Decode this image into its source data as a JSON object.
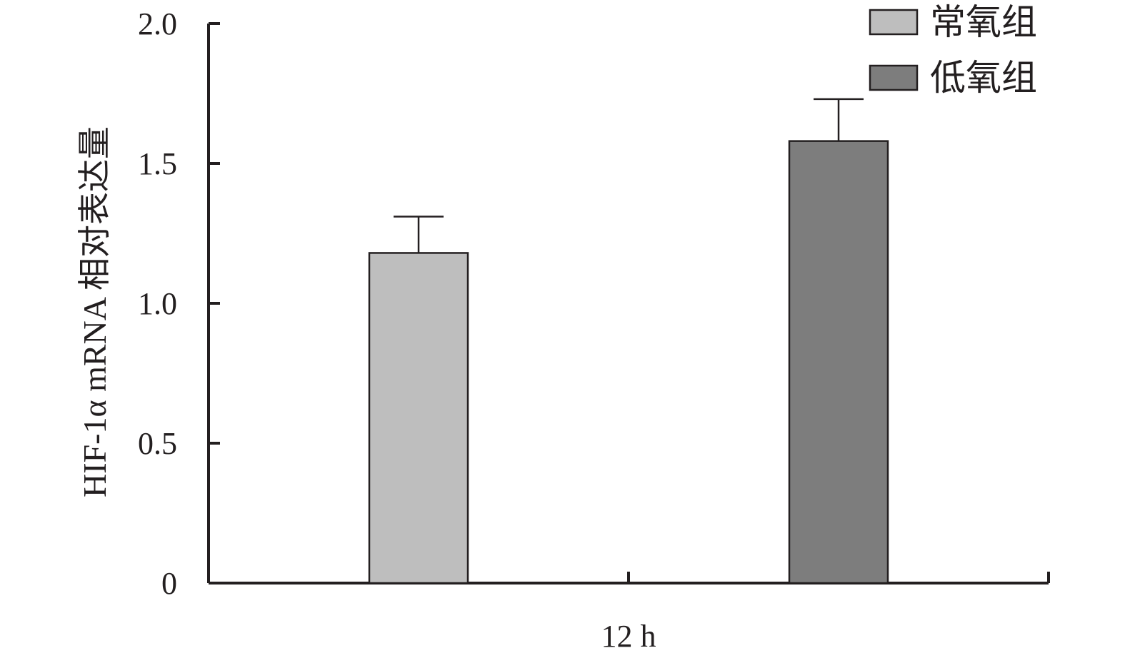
{
  "chart_data": {
    "type": "bar",
    "categories": [
      "12 h"
    ],
    "series": [
      {
        "name": "常氧组",
        "values": [
          1.18
        ],
        "errors": [
          0.13
        ],
        "color": "#bebebe"
      },
      {
        "name": "低氧组",
        "values": [
          1.58
        ],
        "errors": [
          0.15
        ],
        "color": "#7d7d7d"
      }
    ],
    "title": "",
    "xlabel": "",
    "ylabel": "HIF-1α mRNA 相对表达量",
    "ylim": [
      0,
      2.0
    ],
    "yticks": [
      0,
      0.5,
      1.0,
      1.5,
      2.0
    ],
    "ytick_labels": [
      "0",
      "0.5",
      "1.0",
      "1.5",
      "2.0"
    ],
    "grid": false,
    "legend_position": "top-right"
  }
}
